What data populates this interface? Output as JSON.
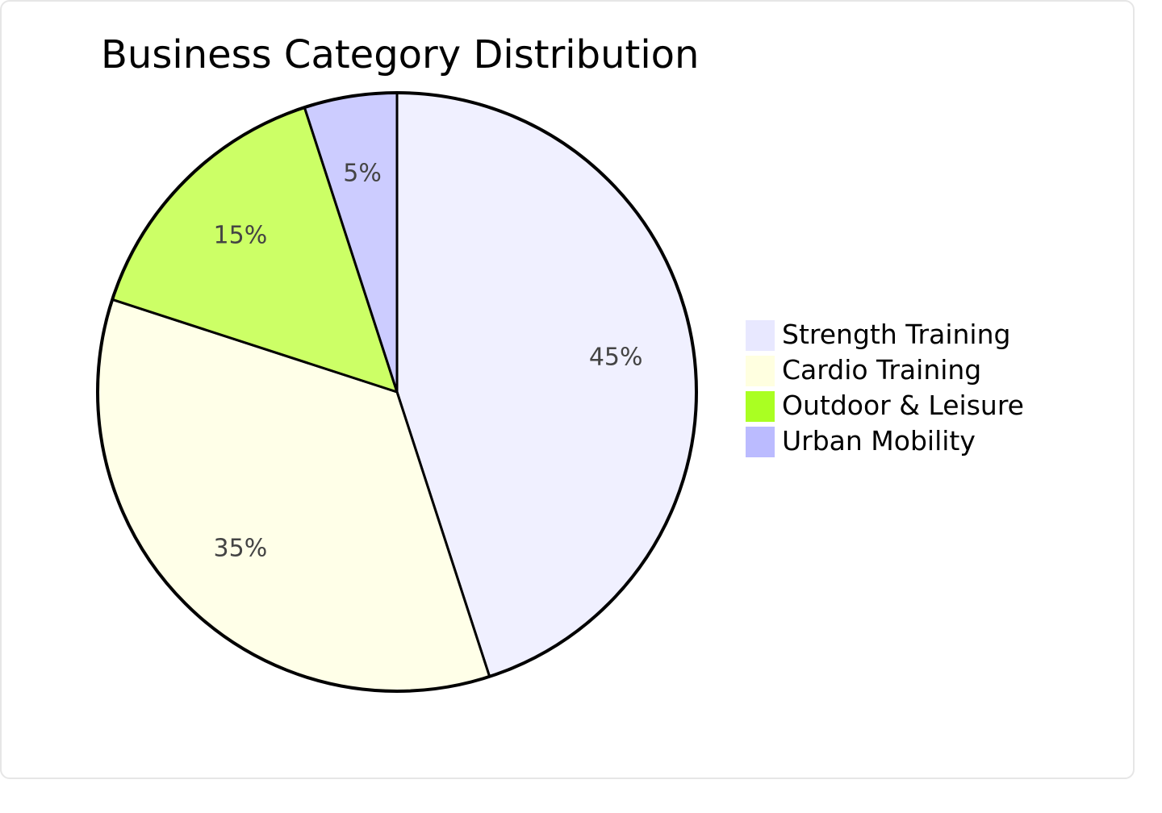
{
  "chart_data": {
    "type": "pie",
    "title": "Business Category Distribution",
    "categories": [
      "Strength Training",
      "Cardio Training",
      "Outdoor & Leisure",
      "Urban Mobility"
    ],
    "values": [
      45,
      35,
      15,
      5
    ],
    "value_labels": [
      "45%",
      "35%",
      "15%",
      "5%"
    ],
    "colors": [
      "#f0f0ff",
      "#ffffe8",
      "#ccff66",
      "#ccccff"
    ],
    "legend_colors": [
      "#e8e8ff",
      "#ffffe0",
      "#aaff22",
      "#bbbbff"
    ],
    "start_angle": "12 o'clock",
    "direction": "clockwise",
    "legend_position": "right"
  }
}
